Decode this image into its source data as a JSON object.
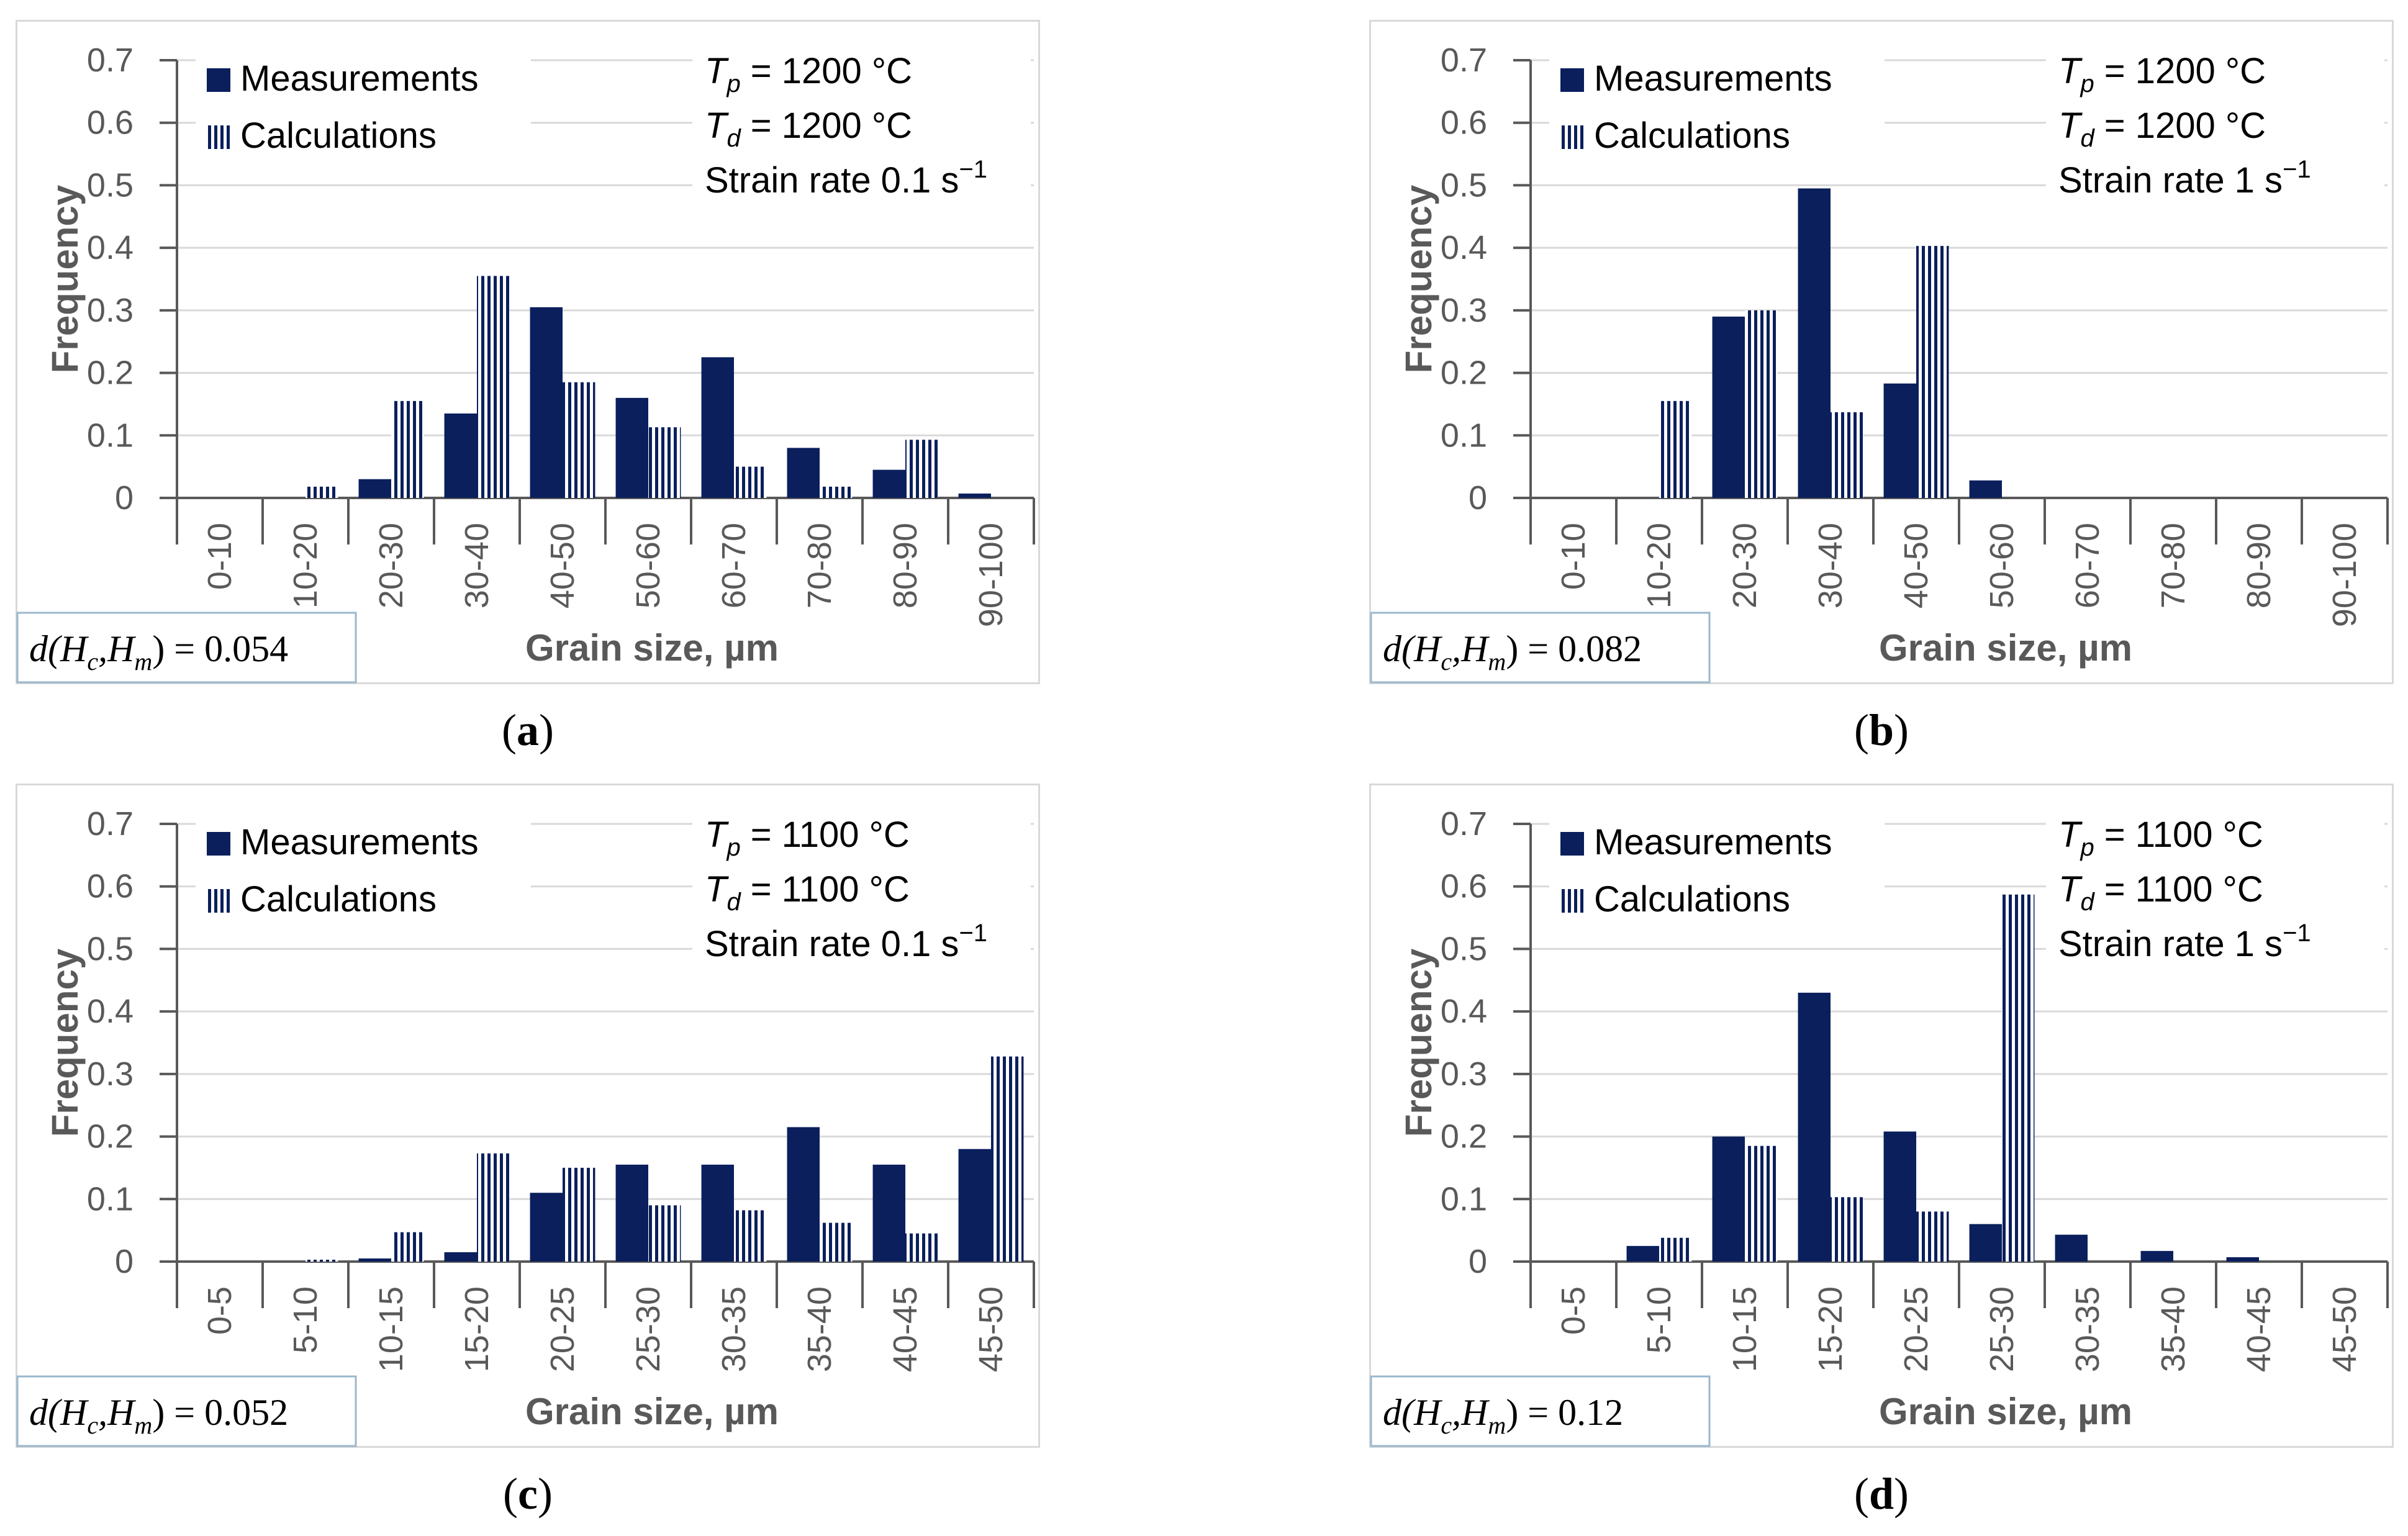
{
  "colors": {
    "measurements": "#0a1f5c",
    "calculations": "#0a1f5c",
    "grid": "#d9d9d9",
    "axis": "#595959"
  },
  "chart_data": [
    {
      "type": "bar",
      "panel": "a",
      "caption": "a",
      "ylabel": "Frequency",
      "xlabel": "Grain size, µm",
      "ylim": [
        0,
        0.7
      ],
      "yticks": [
        "0",
        "0.1",
        "0.2",
        "0.3",
        "0.4",
        "0.5",
        "0.6",
        "0.7"
      ],
      "categories": [
        "0-10",
        "10-20",
        "20-30",
        "30-40",
        "40-50",
        "50-60",
        "60-70",
        "70-80",
        "80-90",
        "90-100"
      ],
      "series": [
        {
          "name": "Measurements",
          "values": [
            0,
            0,
            0.03,
            0.135,
            0.305,
            0.16,
            0.225,
            0.08,
            0.045,
            0.007
          ]
        },
        {
          "name": "Calculations",
          "values": [
            0,
            0.018,
            0.155,
            0.355,
            0.185,
            0.113,
            0.05,
            0.018,
            0.093,
            0
          ]
        }
      ],
      "legend": [
        "Measurements",
        "Calculations"
      ],
      "conditions": {
        "tp_symbol": "T",
        "tp_sub": "p",
        "tp_value": "= 1200 °C",
        "td_symbol": "T",
        "td_sub": "d",
        "td_value": "= 1200 °C",
        "strain_label": "Strain rate 0.1 s",
        "strain_sup": "−1"
      },
      "distance": {
        "prefix": "d(H",
        "c": "c",
        "mid": ",H",
        "m": "m",
        "suffix": ") = 0.054"
      }
    },
    {
      "type": "bar",
      "panel": "b",
      "caption": "b",
      "ylabel": "Frequency",
      "xlabel": "Grain size, µm",
      "ylim": [
        0,
        0.7
      ],
      "yticks": [
        "0",
        "0.1",
        "0.2",
        "0.3",
        "0.4",
        "0.5",
        "0.6",
        "0.7"
      ],
      "categories": [
        "0-10",
        "10-20",
        "20-30",
        "30-40",
        "40-50",
        "50-60",
        "60-70",
        "70-80",
        "80-90",
        "90-100"
      ],
      "series": [
        {
          "name": "Measurements",
          "values": [
            0,
            0,
            0.29,
            0.495,
            0.183,
            0.028,
            0,
            0,
            0,
            0
          ]
        },
        {
          "name": "Calculations",
          "values": [
            0,
            0.155,
            0.3,
            0.137,
            0.403,
            0,
            0,
            0,
            0,
            0
          ]
        }
      ],
      "legend": [
        "Measurements",
        "Calculations"
      ],
      "conditions": {
        "tp_symbol": "T",
        "tp_sub": "p",
        "tp_value": "= 1200 °C",
        "td_symbol": "T",
        "td_sub": "d",
        "td_value": "= 1200 °C",
        "strain_label": "Strain rate 1 s",
        "strain_sup": "−1"
      },
      "distance": {
        "prefix": "d(H",
        "c": "c",
        "mid": ",H",
        "m": "m",
        "suffix": ") = 0.082"
      }
    },
    {
      "type": "bar",
      "panel": "c",
      "caption": "c",
      "ylabel": "Frequency",
      "xlabel": "Grain size, µm",
      "ylim": [
        0,
        0.7
      ],
      "yticks": [
        "0",
        "0.1",
        "0.2",
        "0.3",
        "0.4",
        "0.5",
        "0.6",
        "0.7"
      ],
      "categories": [
        "0-5",
        "5-10",
        "10-15",
        "15-20",
        "20-25",
        "25-30",
        "30-35",
        "35-40",
        "40-45",
        "45-50"
      ],
      "series": [
        {
          "name": "Measurements",
          "values": [
            0,
            0,
            0.005,
            0.015,
            0.11,
            0.155,
            0.155,
            0.215,
            0.155,
            0.18
          ]
        },
        {
          "name": "Calculations",
          "values": [
            0,
            0.003,
            0.047,
            0.173,
            0.15,
            0.09,
            0.082,
            0.062,
            0.045,
            0.328
          ]
        }
      ],
      "legend": [
        "Measurements",
        "Calculations"
      ],
      "conditions": {
        "tp_symbol": "T",
        "tp_sub": "p",
        "tp_value": "= 1100 °C",
        "td_symbol": "T",
        "td_sub": "d",
        "td_value": "= 1100 °C",
        "strain_label": "Strain rate 0.1 s",
        "strain_sup": "−1"
      },
      "distance": {
        "prefix": "d(H",
        "c": "c",
        "mid": ",H",
        "m": "m",
        "suffix": ") = 0.052"
      }
    },
    {
      "type": "bar",
      "panel": "d",
      "caption": "d",
      "ylabel": "Frequency",
      "xlabel": "Grain size, µm",
      "ylim": [
        0,
        0.7
      ],
      "yticks": [
        "0",
        "0.1",
        "0.2",
        "0.3",
        "0.4",
        "0.5",
        "0.6",
        "0.7"
      ],
      "categories": [
        "0-5",
        "5-10",
        "10-15",
        "15-20",
        "20-25",
        "25-30",
        "30-35",
        "35-40",
        "40-45",
        "45-50"
      ],
      "series": [
        {
          "name": "Measurements",
          "values": [
            0,
            0.025,
            0.2,
            0.43,
            0.208,
            0.06,
            0.043,
            0.017,
            0.007,
            0
          ]
        },
        {
          "name": "Calculations",
          "values": [
            0,
            0.038,
            0.185,
            0.103,
            0.08,
            0.587,
            0,
            0,
            0,
            0
          ]
        }
      ],
      "legend": [
        "Measurements",
        "Calculations"
      ],
      "conditions": {
        "tp_symbol": "T",
        "tp_sub": "p",
        "tp_value": "= 1100 °C",
        "td_symbol": "T",
        "td_sub": "d",
        "td_value": "= 1100 °C",
        "strain_label": "Strain rate 1 s",
        "strain_sup": "−1"
      },
      "distance": {
        "prefix": "d(H",
        "c": "c",
        "mid": ",H",
        "m": "m",
        "suffix": ") = 0.12"
      }
    }
  ]
}
